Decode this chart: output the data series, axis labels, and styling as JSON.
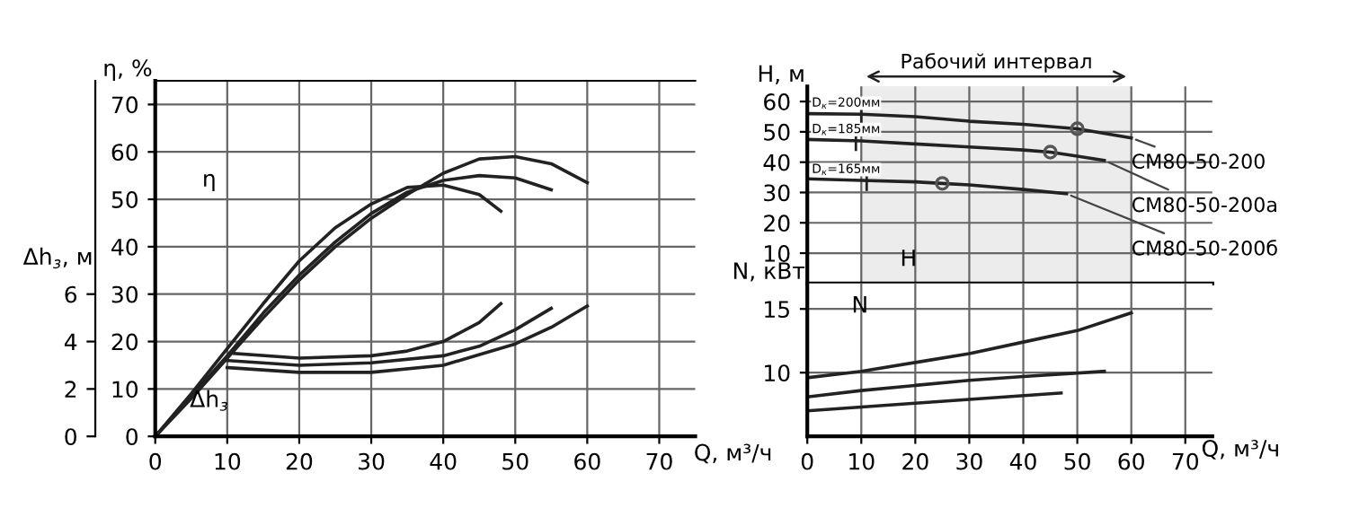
{
  "chart_data": [
    {
      "type": "line",
      "xlabel": "Q, м³/ч",
      "ylabel": "η, %",
      "y2label": "Δh$_{з}$, м",
      "xlim": [
        0,
        75
      ],
      "xticks": [
        0,
        10,
        20,
        30,
        40,
        50,
        60,
        70
      ],
      "ylim": [
        0,
        75
      ],
      "yticks": [
        0,
        10,
        20,
        30,
        40,
        50,
        60,
        70
      ],
      "y2lim": [
        0,
        15
      ],
      "y2ticks": [
        0,
        2,
        4,
        6
      ],
      "grid": true,
      "annotations": [
        "η",
        "Δh$_{з}$"
      ],
      "series": [
        {
          "color": "#222222",
          "x": [
            0,
            5,
            10,
            15,
            20,
            25,
            30,
            35,
            40,
            45,
            48
          ],
          "values": [
            0,
            9,
            18.5,
            28,
            37,
            44,
            49,
            52.5,
            53,
            51,
            47.5
          ]
        },
        {
          "color": "#222222",
          "x": [
            0,
            5,
            10,
            15,
            20,
            25,
            30,
            35,
            40,
            45,
            50,
            55
          ],
          "values": [
            0,
            8.5,
            17,
            26,
            34,
            41,
            47,
            51.5,
            54,
            55,
            54.5,
            52
          ]
        },
        {
          "color": "#222222",
          "x": [
            0,
            5,
            10,
            15,
            20,
            25,
            30,
            35,
            40,
            45,
            50,
            55,
            60
          ],
          "values": [
            0,
            8,
            16.5,
            25,
            33,
            40,
            46,
            51,
            55.5,
            58.5,
            59,
            57.5,
            53.5
          ]
        },
        {
          "color": "#222222",
          "axis": "y2",
          "x": [
            11,
            20,
            30,
            35,
            40,
            45,
            48
          ],
          "values": [
            3.5,
            3.3,
            3.4,
            3.6,
            4.0,
            4.8,
            5.6
          ]
        },
        {
          "color": "#222222",
          "axis": "y2",
          "x": [
            10,
            20,
            30,
            40,
            45,
            50,
            55
          ],
          "values": [
            3.2,
            3.0,
            3.1,
            3.4,
            3.8,
            4.5,
            5.4
          ]
        },
        {
          "color": "#222222",
          "axis": "y2",
          "x": [
            10,
            20,
            30,
            40,
            50,
            55,
            60
          ],
          "values": [
            2.9,
            2.7,
            2.7,
            3.0,
            3.9,
            4.6,
            5.5
          ]
        }
      ]
    },
    {
      "type": "line",
      "ylabel": "H, м",
      "xlim": [
        0,
        75
      ],
      "xticks": [
        0,
        10,
        20,
        30,
        40,
        50,
        60,
        70
      ],
      "ylim": [
        0,
        65
      ],
      "yticks": [
        10,
        20,
        30,
        40,
        50,
        60
      ],
      "grid": true,
      "tick_labels": "y",
      "bands": [
        {
          "axis": "x",
          "from": 10,
          "to": 60,
          "label": "Рабочий интервал",
          "color": "#ececec"
        }
      ],
      "annotations": [
        "H",
        {
          "text": "D$_{к}$=200мм",
          "x": 10,
          "y": 55.8
        },
        {
          "text": "D$_{к}$=185мм",
          "x": 9,
          "y": 47.1
        },
        {
          "text": "D$_{к}$=165мм",
          "x": 11,
          "y": 33.9
        }
      ],
      "series": [
        {
          "name": "СМ80-50-200",
          "color": "#222222",
          "x": [
            0,
            10,
            20,
            30,
            40,
            50,
            60
          ],
          "values": [
            56,
            55.8,
            55,
            53.5,
            52.5,
            51,
            48
          ]
        },
        {
          "name": "СМ80-50-200а",
          "color": "#222222",
          "x": [
            0,
            10,
            20,
            30,
            40,
            45,
            50,
            55
          ],
          "values": [
            47.5,
            47,
            46,
            45,
            44,
            43.3,
            42,
            40.6
          ]
        },
        {
          "name": "СМ80-50-200б",
          "color": "#222222",
          "x": [
            0,
            10,
            20,
            25,
            30,
            40,
            48
          ],
          "values": [
            34.5,
            34,
            33.5,
            33,
            32.5,
            31,
            29.6
          ]
        },
        {
          "type": "scatter",
          "marker": "circle",
          "color": "#555555",
          "x": [
            50,
            45,
            25
          ],
          "values": [
            51,
            43.3,
            33
          ]
        }
      ]
    },
    {
      "type": "line",
      "xlabel": "Q, м³/ч",
      "ylabel": "N, кВт",
      "xlim": [
        0,
        75
      ],
      "xticks": [
        0,
        10,
        20,
        30,
        40,
        50,
        60,
        70
      ],
      "ylim": [
        5,
        17
      ],
      "yticks": [
        10,
        15
      ],
      "grid": true,
      "annotations": [
        "N"
      ],
      "series": [
        {
          "color": "#222222",
          "x": [
            0,
            10,
            20,
            30,
            40,
            50,
            60
          ],
          "values": [
            9.6,
            10.1,
            10.8,
            11.5,
            12.4,
            13.3,
            14.7
          ]
        },
        {
          "color": "#222222",
          "x": [
            0,
            10,
            20,
            30,
            40,
            55
          ],
          "values": [
            8.1,
            8.6,
            9.0,
            9.4,
            9.7,
            10.1
          ]
        },
        {
          "color": "#222222",
          "x": [
            0,
            10,
            20,
            30,
            47
          ],
          "values": [
            7.0,
            7.3,
            7.6,
            7.9,
            8.4
          ]
        }
      ]
    }
  ]
}
